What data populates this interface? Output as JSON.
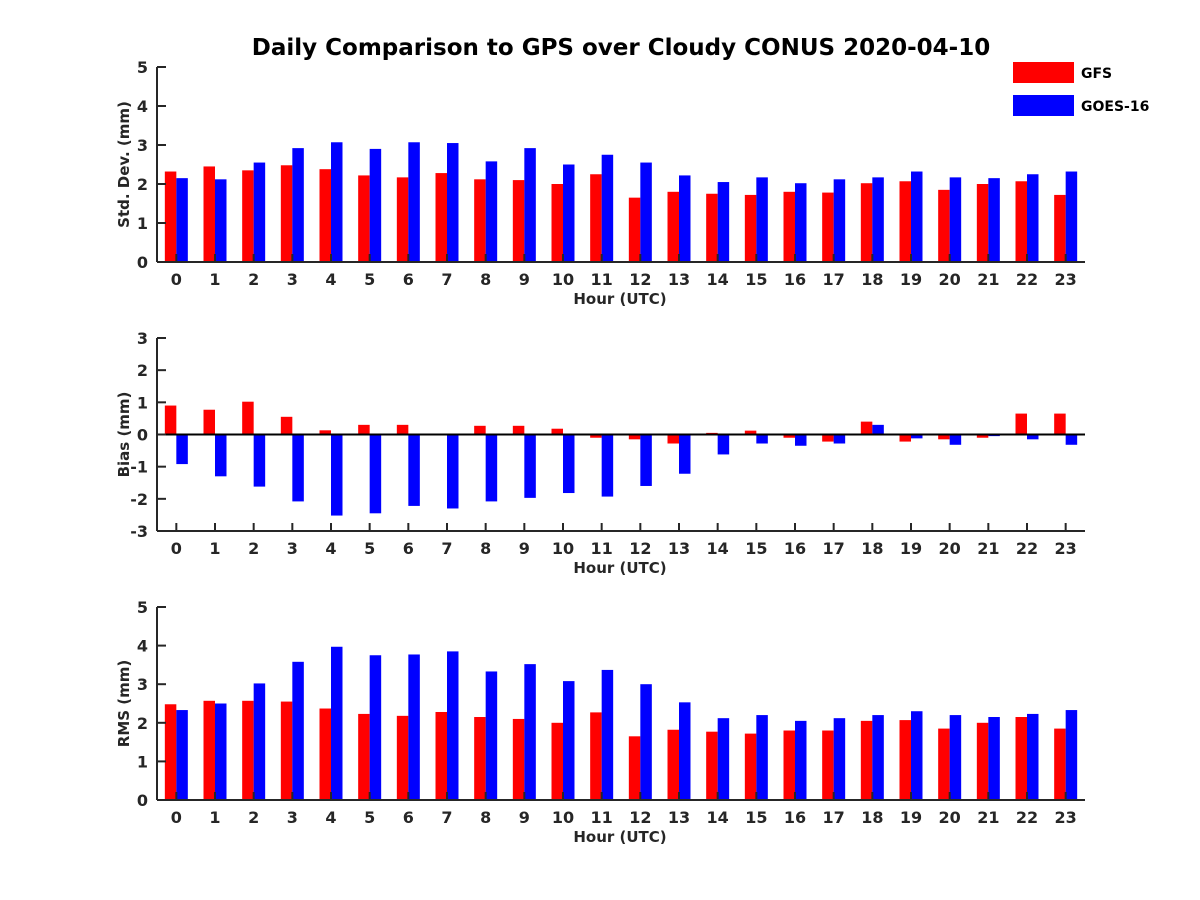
{
  "figure": {
    "title": "Daily Comparison to GPS over Cloudy CONUS 2020-04-10",
    "legend": {
      "placement": "top-right",
      "entries": [
        {
          "label": "GFS",
          "color": "#ff0000"
        },
        {
          "label": "GOES-16",
          "color": "#0000ff"
        }
      ]
    }
  },
  "chart_data": [
    {
      "type": "bar",
      "xlabel": "Hour (UTC)",
      "ylabel": "Std. Dev. (mm)",
      "ylim": [
        0,
        5
      ],
      "yticks": [
        0,
        1,
        2,
        3,
        4,
        5
      ],
      "categories": [
        "0",
        "1",
        "2",
        "3",
        "4",
        "5",
        "6",
        "7",
        "8",
        "9",
        "10",
        "11",
        "12",
        "13",
        "14",
        "15",
        "16",
        "17",
        "18",
        "19",
        "20",
        "21",
        "22",
        "23"
      ],
      "series": [
        {
          "name": "GFS",
          "color": "#ff0000",
          "values": [
            2.32,
            2.45,
            2.35,
            2.48,
            2.38,
            2.22,
            2.17,
            2.28,
            2.12,
            2.1,
            2.0,
            2.25,
            1.65,
            1.8,
            1.75,
            1.72,
            1.8,
            1.78,
            2.02,
            2.07,
            1.85,
            2.0,
            2.07,
            1.72
          ]
        },
        {
          "name": "GOES-16",
          "color": "#0000ff",
          "values": [
            2.15,
            2.12,
            2.55,
            2.92,
            3.07,
            2.9,
            3.07,
            3.05,
            2.58,
            2.92,
            2.5,
            2.75,
            2.55,
            2.22,
            2.05,
            2.17,
            2.02,
            2.12,
            2.17,
            2.32,
            2.17,
            2.15,
            2.25,
            2.32
          ]
        }
      ]
    },
    {
      "type": "bar",
      "xlabel": "Hour (UTC)",
      "ylabel": "Bias (mm)",
      "ylim": [
        -3,
        3
      ],
      "yticks": [
        -3,
        -2,
        -1,
        0,
        1,
        2,
        3
      ],
      "categories": [
        "0",
        "1",
        "2",
        "3",
        "4",
        "5",
        "6",
        "7",
        "8",
        "9",
        "10",
        "11",
        "12",
        "13",
        "14",
        "15",
        "16",
        "17",
        "18",
        "19",
        "20",
        "21",
        "22",
        "23"
      ],
      "series": [
        {
          "name": "GFS",
          "color": "#ff0000",
          "values": [
            0.9,
            0.77,
            1.02,
            0.55,
            0.13,
            0.3,
            0.3,
            0.0,
            0.27,
            0.27,
            0.18,
            -0.1,
            -0.15,
            -0.28,
            0.05,
            0.12,
            -0.1,
            -0.22,
            0.4,
            -0.22,
            -0.15,
            -0.1,
            0.65,
            0.65
          ]
        },
        {
          "name": "GOES-16",
          "color": "#0000ff",
          "values": [
            -0.92,
            -1.3,
            -1.62,
            -2.08,
            -2.52,
            -2.45,
            -2.22,
            -2.3,
            -2.08,
            -1.97,
            -1.82,
            -1.93,
            -1.6,
            -1.22,
            -0.62,
            -0.28,
            -0.35,
            -0.28,
            0.3,
            -0.12,
            -0.32,
            -0.05,
            -0.15,
            -0.32
          ]
        }
      ]
    },
    {
      "type": "bar",
      "xlabel": "Hour (UTC)",
      "ylabel": "RMS (mm)",
      "ylim": [
        0,
        5
      ],
      "yticks": [
        0,
        1,
        2,
        3,
        4,
        5
      ],
      "categories": [
        "0",
        "1",
        "2",
        "3",
        "4",
        "5",
        "6",
        "7",
        "8",
        "9",
        "10",
        "11",
        "12",
        "13",
        "14",
        "15",
        "16",
        "17",
        "18",
        "19",
        "20",
        "21",
        "22",
        "23"
      ],
      "series": [
        {
          "name": "GFS",
          "color": "#ff0000",
          "values": [
            2.48,
            2.57,
            2.57,
            2.55,
            2.37,
            2.23,
            2.18,
            2.28,
            2.15,
            2.1,
            2.0,
            2.27,
            1.65,
            1.82,
            1.77,
            1.72,
            1.8,
            1.8,
            2.05,
            2.07,
            1.85,
            2.0,
            2.15,
            1.85
          ]
        },
        {
          "name": "GOES-16",
          "color": "#0000ff",
          "values": [
            2.33,
            2.5,
            3.02,
            3.58,
            3.97,
            3.75,
            3.77,
            3.85,
            3.33,
            3.52,
            3.08,
            3.37,
            3.0,
            2.53,
            2.12,
            2.2,
            2.05,
            2.12,
            2.2,
            2.3,
            2.2,
            2.15,
            2.23,
            2.33
          ]
        }
      ]
    }
  ]
}
